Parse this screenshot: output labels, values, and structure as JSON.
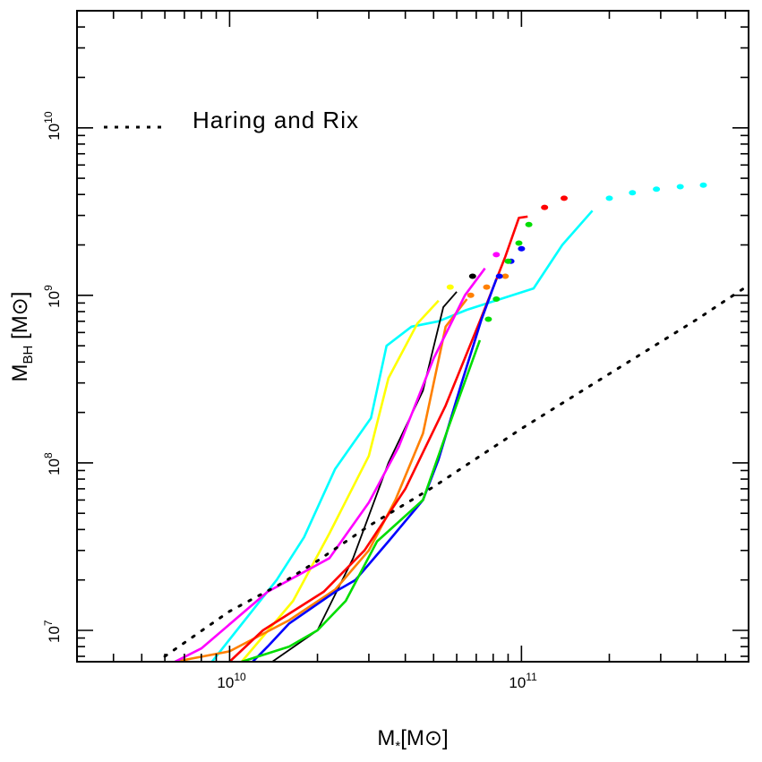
{
  "chart_data": {
    "type": "line",
    "title": "",
    "xscale": "log",
    "yscale": "log",
    "xlim": [
      3000000000.0,
      600000000000.0
    ],
    "ylim": [
      6500000.0,
      50000000000.0
    ],
    "xlabel": {
      "main": "M",
      "sub": "*",
      "unit": "[M",
      "sun": "⊙",
      "close": "]"
    },
    "ylabel": {
      "main": "M",
      "sub": "BH",
      "unit": " [M",
      "sun": "⊙",
      "close": "]"
    },
    "x_ticks": [
      {
        "base": "10",
        "exp": "10",
        "value": 10000000000.0
      },
      {
        "base": "10",
        "exp": "11",
        "value": 100000000000.0
      }
    ],
    "y_ticks": [
      {
        "base": "10",
        "exp": "7",
        "value": 10000000.0
      },
      {
        "base": "10",
        "exp": "8",
        "value": 100000000.0
      },
      {
        "base": "10",
        "exp": "9",
        "value": 1000000000.0
      },
      {
        "base": "10",
        "exp": "10",
        "value": 10000000000.0
      }
    ],
    "legend": [
      {
        "label": "Haring and Rix",
        "style": "dotted",
        "color": "#000000"
      }
    ],
    "reference": {
      "name": "Haring and Rix",
      "color": "#000000",
      "x": [
        6000000000.0,
        10000000000.0,
        15000000000.0,
        20000000000.0,
        30000000000.0,
        50000000000.0,
        100000000000.0,
        200000000000.0,
        400000000000.0,
        600000000000.0
      ],
      "y": [
        7000000.0,
        13000000.0,
        19000000.0,
        26000000.0,
        42000000.0,
        72000000.0,
        160000000.0,
        340000000.0,
        720000000.0,
        1150000000.0
      ]
    },
    "series": [
      {
        "name": "cyan",
        "color": "#00ffff",
        "x": [
          8700000000.0,
          14500000000.0,
          18000000000.0,
          23000000000.0,
          30500000000.0,
          34500000000.0,
          42000000000.0,
          52000000000.0,
          65000000000.0,
          110000000000.0,
          138000000000.0,
          175000000000.0
        ],
        "y": [
          6500000.0,
          20000000.0,
          36000000.0,
          92000000.0,
          185000000.0,
          500000000.0,
          650000000.0,
          700000000.0,
          820000000.0,
          1100000000.0,
          2000000000.0,
          3200000000.0
        ],
        "tail_x": [
          200000000000.0,
          240000000000.0,
          290000000000.0,
          350000000000.0,
          420000000000.0
        ],
        "tail_y": [
          3800000000.0,
          4100000000.0,
          4300000000.0,
          4450000000.0,
          4550000000.0
        ]
      },
      {
        "name": "yellow",
        "color": "#ffff00",
        "x": [
          11000000000.0,
          16500000000.0,
          22000000000.0,
          30000000000.0,
          35000000000.0,
          44000000000.0,
          52000000000.0
        ],
        "y": [
          6500000.0,
          15000000.0,
          38000000.0,
          110000000.0,
          320000000.0,
          680000000.0,
          930000000.0
        ],
        "tail_x": [
          57000000000.0
        ],
        "tail_y": [
          1120000000.0
        ]
      },
      {
        "name": "black",
        "color": "#000000",
        "x": [
          14000000000.0,
          20000000000.0,
          26500000000.0,
          35000000000.0,
          46000000000.0,
          54000000000.0,
          60000000000.0
        ],
        "y": [
          6500000.0,
          10000000.0,
          27000000.0,
          100000000.0,
          270000000.0,
          850000000.0,
          1050000000.0
        ],
        "tail_x": [
          68000000000.0
        ],
        "tail_y": [
          1300000000.0
        ]
      },
      {
        "name": "orange",
        "color": "#ff8000",
        "x": [
          6500000000.0,
          10000000000.0,
          16000000000.0,
          23000000000.0,
          30000000000.0,
          37000000000.0,
          46000000000.0,
          55000000000.0,
          65000000000.0
        ],
        "y": [
          6500000.0,
          7500000.0,
          11500000.0,
          17500000.0,
          30000000.0,
          60000000.0,
          150000000.0,
          650000000.0,
          950000000.0
        ],
        "tail_x": [
          67000000000.0,
          76000000000.0,
          88000000000.0
        ],
        "tail_y": [
          1000000000.0,
          1120000000.0,
          1300000000.0
        ]
      },
      {
        "name": "magenta",
        "color": "#ff00ff",
        "x": [
          6500000000.0,
          8000000000.0,
          13500000000.0,
          22000000000.0,
          30000000000.0,
          38000000000.0,
          50000000000.0,
          64000000000.0,
          75000000000.0
        ],
        "y": [
          6500000.0,
          7800000.0,
          17000000.0,
          27000000.0,
          58000000.0,
          125000000.0,
          420000000.0,
          1000000000.0,
          1450000000.0
        ],
        "tail_x": [
          82000000000.0
        ],
        "tail_y": [
          1750000000.0
        ]
      },
      {
        "name": "red",
        "color": "#ff0000",
        "x": [
          10000000000.0,
          13000000000.0,
          21000000000.0,
          29000000000.0,
          40000000000.0,
          55000000000.0,
          72000000000.0,
          88000000000.0,
          98000000000.0,
          105000000000.0
        ],
        "y": [
          6500000.0,
          10000000.0,
          17000000.0,
          30000000.0,
          70000000.0,
          220000000.0,
          700000000.0,
          1700000000.0,
          2900000000.0,
          2950000000.0
        ],
        "tail_x": [
          120000000000.0,
          140000000000.0
        ],
        "tail_y": [
          3350000000.0,
          3800000000.0
        ]
      },
      {
        "name": "blue",
        "color": "#0000ff",
        "x": [
          12000000000.0,
          13500000000.0,
          16000000000.0,
          23000000000.0,
          27000000000.0,
          35000000000.0,
          46000000000.0,
          52000000000.0,
          62000000000.0,
          73000000000.0,
          82000000000.0
        ],
        "y": [
          6500000.0,
          8000000.0,
          11000000.0,
          17000000.0,
          20000000.0,
          34000000.0,
          60000000.0,
          105000000.0,
          290000000.0,
          720000000.0,
          1250000000.0
        ],
        "tail_x": [
          84000000000.0,
          92000000000.0,
          100000000000.0
        ],
        "tail_y": [
          1300000000.0,
          1600000000.0,
          1900000000.0
        ]
      },
      {
        "name": "green",
        "color": "#00dd00",
        "x": [
          11000000000.0,
          16000000000.0,
          20000000000.0,
          25000000000.0,
          32000000000.0,
          46000000000.0,
          56000000000.0,
          72000000000.0
        ],
        "y": [
          6500000.0,
          8000000.0,
          10000000.0,
          15000000.0,
          34000000.0,
          60000000.0,
          160000000.0,
          540000000.0
        ],
        "tail_x": [
          77000000000.0,
          82000000000.0,
          90000000000.0,
          98000000000.0,
          106000000000.0
        ],
        "tail_y": [
          720000000.0,
          950000000.0,
          1600000000.0,
          2050000000.0,
          2650000000.0
        ]
      }
    ]
  }
}
